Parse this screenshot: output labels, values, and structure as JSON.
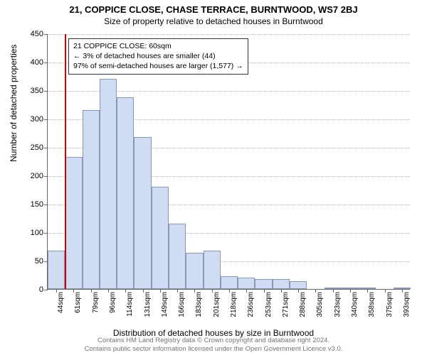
{
  "title": {
    "main": "21, COPPICE CLOSE, CHASE TERRACE, BURNTWOOD, WS7 2BJ",
    "sub": "Size of property relative to detached houses in Burntwood"
  },
  "ylabel": "Number of detached properties",
  "xlabel": "Distribution of detached houses by size in Burntwood",
  "chart": {
    "type": "histogram",
    "ylim": [
      0,
      450
    ],
    "ytick_step": 50,
    "bar_fill": "#cfdcf2",
    "bar_stroke": "#8a98b8",
    "grid_color": "#b8b8b8",
    "background": "#ffffff",
    "marker_color": "#d40000",
    "marker_x_index": 1,
    "x_labels": [
      "44sqm",
      "61sqm",
      "79sqm",
      "96sqm",
      "114sqm",
      "131sqm",
      "149sqm",
      "166sqm",
      "183sqm",
      "201sqm",
      "218sqm",
      "236sqm",
      "253sqm",
      "271sqm",
      "288sqm",
      "305sqm",
      "323sqm",
      "340sqm",
      "358sqm",
      "375sqm",
      "393sqm"
    ],
    "values": [
      68,
      233,
      315,
      370,
      337,
      268,
      180,
      115,
      64,
      68,
      23,
      20,
      18,
      18,
      14,
      0,
      3,
      2,
      1,
      0,
      1
    ]
  },
  "info_box": {
    "line1": "21 COPPICE CLOSE: 60sqm",
    "line2": "← 3% of detached houses are smaller (44)",
    "line3": "97% of semi-detached houses are larger (1,577) →"
  },
  "footer": {
    "line1": "Contains HM Land Registry data © Crown copyright and database right 2024.",
    "line2": "Contains public sector information licensed under the Open Government Licence v3.0."
  }
}
